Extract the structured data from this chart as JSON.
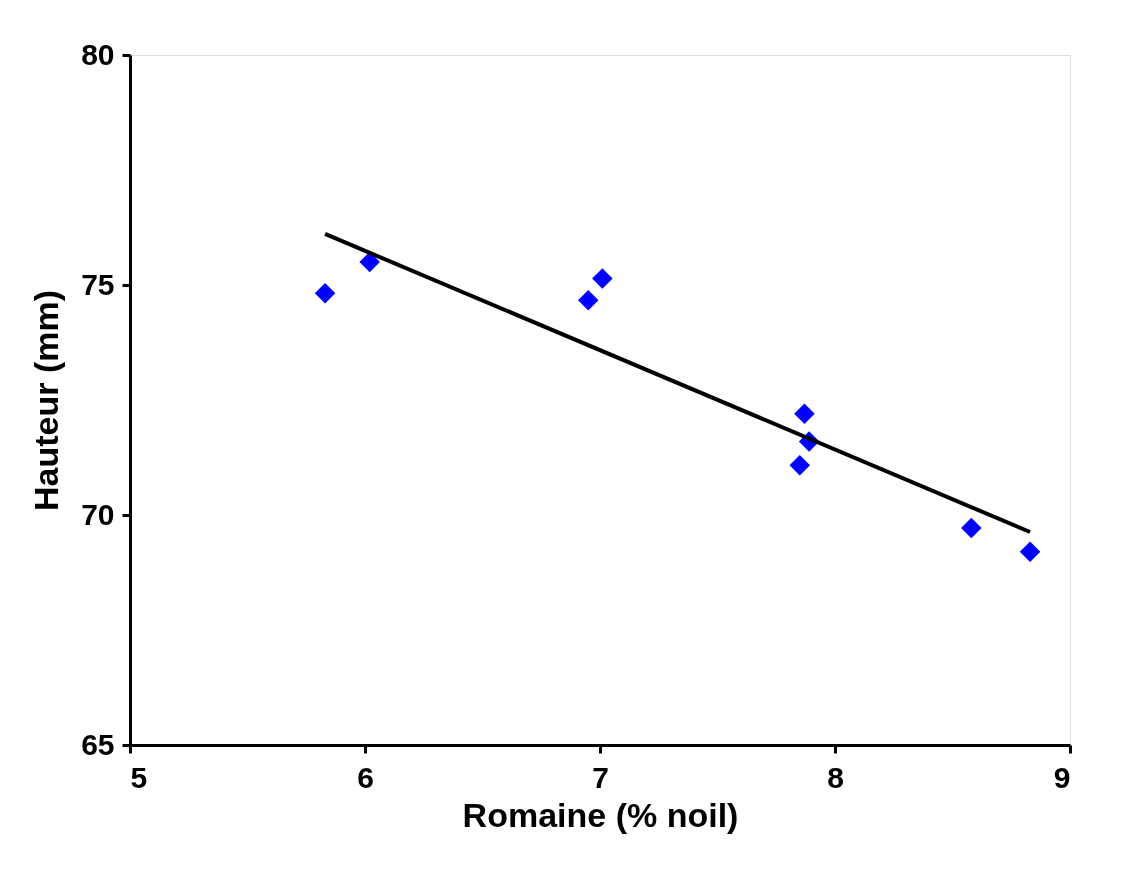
{
  "chart_data": {
    "type": "scatter",
    "xlabel": "Romaine (% noil)",
    "ylabel": "Hauteur (mm)",
    "xlim": [
      5,
      9
    ],
    "xticks": [
      5,
      6,
      7,
      8,
      9
    ],
    "ylim": [
      65,
      80
    ],
    "yticks": [
      65,
      70,
      75,
      80
    ],
    "grid": false,
    "series": [
      {
        "color": "#0000ff",
        "marker": "diamond",
        "x": [
          5.83,
          6.02,
          6.95,
          7.01,
          7.87,
          7.89,
          7.85,
          8.58,
          8.83
        ],
        "values": [
          74.82,
          75.5,
          74.67,
          75.14,
          72.2,
          71.6,
          71.08,
          69.72,
          69.2
        ]
      },
      {
        "type": "line",
        "color": "#000000",
        "line_style": "solid",
        "x": [
          5.83,
          8.83
        ],
        "values": [
          76.11,
          69.63
        ]
      }
    ]
  }
}
